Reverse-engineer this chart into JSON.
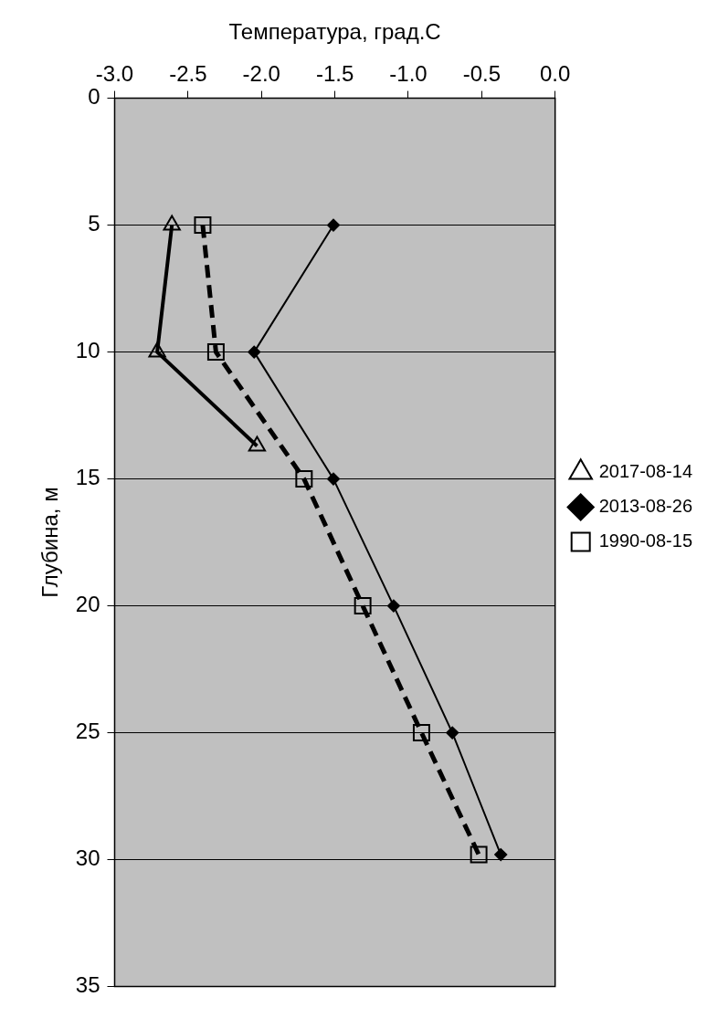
{
  "chart_data": {
    "type": "line",
    "xlabel": "Температура, град.С",
    "ylabel": "Глубина, м",
    "xlim": [
      -3.0,
      0.0
    ],
    "xticks": [
      {
        "value": -3,
        "label": "-3.0"
      },
      {
        "value": -2.5,
        "label": "-2.5"
      },
      {
        "value": -2,
        "label": "-2.0"
      },
      {
        "value": -1.5,
        "label": "-1.5"
      },
      {
        "value": -1,
        "label": "-1.0"
      },
      {
        "value": -0.5,
        "label": "-0.5"
      },
      {
        "value": 0,
        "label": "0.0"
      }
    ],
    "ylim": [
      35,
      0
    ],
    "yticks": [
      0,
      5,
      10,
      15,
      20,
      25,
      30,
      35
    ],
    "grid": "y",
    "legend": "right",
    "series": [
      {
        "name": "2017-08-14",
        "color": "#000000",
        "marker": "triangle",
        "line_style": "solid",
        "x": [
          -2.61,
          -2.71,
          -2.03
        ],
        "values": [
          5,
          10,
          13.7
        ]
      },
      {
        "name": "2013-08-26",
        "color": "#000000",
        "marker": "diamond",
        "line_style": "solid",
        "x": [
          -1.51,
          -2.05,
          -1.51,
          -1.1,
          -0.7,
          -0.37
        ],
        "values": [
          5,
          10,
          15,
          20,
          25,
          29.8
        ]
      },
      {
        "name": "1990-08-15",
        "color": "#000000",
        "marker": "square",
        "line_style": "dashed",
        "x": [
          -2.4,
          -2.31,
          -1.71,
          -1.31,
          -0.91,
          -0.52
        ],
        "values": [
          5,
          10,
          15,
          20,
          25,
          29.8
        ]
      }
    ]
  }
}
